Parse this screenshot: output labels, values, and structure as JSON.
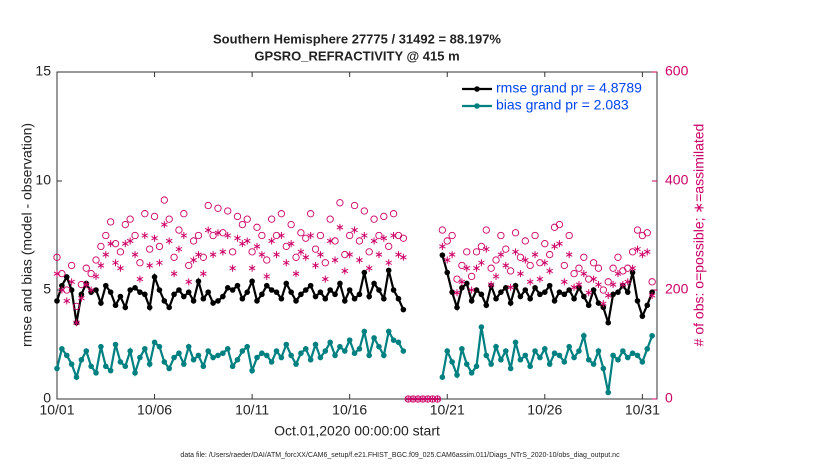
{
  "chart_data": {
    "type": "line",
    "title": "Southern Hemisphere 27775 / 31492 = 88.197%",
    "subtitle": "GPSRO_REFRACTIVITY @ 415 m",
    "ylabel": "rmse and bias (model - observation)",
    "y2label": "# of obs: o=possible; ∗=assimilated",
    "xlabel": "Oct.01,2020 00:00:00 start",
    "footnote": "data file: /Users/raeder/DAI/ATM_forcXX/CAM6_setup/f.e21.FHIST_BGC.f09_025.CAM6assim.011/Diags_NTrS_2020-10/obs_diag_output.nc",
    "xlim": [
      0,
      30.75
    ],
    "ylim": [
      0,
      15
    ],
    "y2lim": [
      0,
      600
    ],
    "xticks": [
      {
        "value": 0,
        "label": "10/01"
      },
      {
        "value": 5,
        "label": "10/06"
      },
      {
        "value": 10,
        "label": "10/11"
      },
      {
        "value": 15,
        "label": "10/16"
      },
      {
        "value": 20,
        "label": "10/21"
      },
      {
        "value": 25,
        "label": "10/26"
      },
      {
        "value": 30,
        "label": "10/31"
      }
    ],
    "yticks": [
      0,
      5,
      10,
      15
    ],
    "y2ticks": [
      0,
      200,
      400,
      600
    ],
    "legend": "upper-right",
    "legend_color": "#0044ee",
    "y2color": "#cc0066",
    "x": [
      0,
      0.25,
      0.5,
      0.75,
      1,
      1.25,
      1.5,
      1.75,
      2,
      2.25,
      2.5,
      2.75,
      3,
      3.25,
      3.5,
      3.75,
      4,
      4.25,
      4.5,
      4.75,
      5,
      5.25,
      5.5,
      5.75,
      6,
      6.25,
      6.5,
      6.75,
      7,
      7.25,
      7.5,
      7.75,
      8,
      8.25,
      8.5,
      8.75,
      9,
      9.25,
      9.5,
      9.75,
      10,
      10.25,
      10.5,
      10.75,
      11,
      11.25,
      11.5,
      11.75,
      12,
      12.25,
      12.5,
      12.75,
      13,
      13.25,
      13.5,
      13.75,
      14,
      14.25,
      14.5,
      14.75,
      15,
      15.25,
      15.5,
      15.75,
      16,
      16.25,
      16.5,
      16.75,
      17,
      17.25,
      17.5,
      17.75,
      18,
      18.25,
      18.5,
      18.75,
      19,
      19.25,
      19.5,
      19.75,
      20,
      20.25,
      20.5,
      20.75,
      21,
      21.25,
      21.5,
      21.75,
      22,
      22.25,
      22.5,
      22.75,
      23,
      23.25,
      23.5,
      23.75,
      24,
      24.25,
      24.5,
      24.75,
      25,
      25.25,
      25.5,
      25.75,
      26,
      26.25,
      26.5,
      26.75,
      27,
      27.25,
      27.5,
      27.75,
      28,
      28.25,
      28.5,
      28.75,
      29,
      29.25,
      29.5,
      29.75,
      30,
      30.25,
      30.5
    ],
    "series": [
      {
        "name": "rmse grand pr = 4.8789",
        "color": "#000000",
        "marker": "dot",
        "values": [
          4.5,
          5.2,
          5.6,
          5.0,
          3.5,
          4.8,
          5.3,
          4.9,
          5.0,
          4.4,
          5.2,
          4.9,
          4.3,
          4.7,
          4.2,
          5.0,
          5.1,
          4.9,
          4.8,
          4.2,
          5.6,
          5.0,
          4.5,
          4.2,
          4.8,
          5.0,
          4.7,
          4.9,
          4.5,
          5.4,
          4.6,
          4.9,
          4.4,
          4.5,
          4.7,
          5.1,
          5.0,
          5.2,
          4.6,
          4.9,
          5.4,
          4.5,
          4.8,
          5.2,
          5.0,
          4.9,
          4.6,
          5.3,
          4.9,
          4.5,
          4.8,
          5.0,
          5.2,
          4.7,
          4.9,
          4.6,
          5.0,
          4.8,
          5.3,
          4.5,
          5.0,
          4.6,
          4.8,
          5.8,
          4.7,
          5.3,
          5.0,
          4.6,
          5.9,
          5.0,
          4.6,
          4.1,
          null,
          null,
          null,
          null,
          null,
          null,
          null,
          6.6,
          5.8,
          4.9,
          4.2,
          5.1,
          5.3,
          4.5,
          5.0,
          4.8,
          4.3,
          5.2,
          4.6,
          4.9,
          5.1,
          4.4,
          5.2,
          4.7,
          5.0,
          4.6,
          5.1,
          4.8,
          4.9,
          5.2,
          4.5,
          4.9,
          4.8,
          5.0,
          4.6,
          5.1,
          4.7,
          4.3,
          5.0,
          4.4,
          4.2,
          3.5,
          4.8,
          4.9,
          5.2,
          4.9,
          5.8,
          4.5,
          3.8,
          4.3,
          4.9
        ]
      },
      {
        "name": "bias grand pr = 2.083",
        "color": "#008080",
        "marker": "dot",
        "values": [
          1.4,
          2.3,
          2.0,
          1.6,
          1.0,
          1.8,
          2.2,
          1.5,
          1.2,
          2.4,
          1.5,
          1.3,
          2.5,
          1.7,
          1.5,
          2.2,
          1.2,
          1.9,
          2.3,
          1.6,
          2.6,
          2.4,
          1.7,
          1.4,
          1.9,
          2.1,
          1.6,
          2.4,
          1.8,
          2.0,
          1.5,
          2.2,
          1.9,
          2.0,
          2.1,
          2.3,
          1.5,
          1.8,
          2.2,
          2.4,
          1.3,
          1.9,
          2.1,
          2.0,
          1.7,
          2.2,
          1.9,
          2.5,
          2.0,
          1.6,
          2.1,
          2.3,
          1.8,
          2.5,
          1.9,
          2.2,
          2.6,
          2.0,
          2.4,
          2.2,
          2.7,
          2.1,
          2.3,
          3.1,
          2.0,
          2.8,
          2.4,
          2.0,
          3.1,
          2.7,
          2.6,
          2.2,
          null,
          null,
          null,
          null,
          null,
          null,
          null,
          1.0,
          2.2,
          1.7,
          1.1,
          2.3,
          1.6,
          1.2,
          1.5,
          3.3,
          2.0,
          1.6,
          2.4,
          1.8,
          2.2,
          1.4,
          2.6,
          1.8,
          2.0,
          1.5,
          2.2,
          1.9,
          2.3,
          1.6,
          2.1,
          2.0,
          1.7,
          2.4,
          1.9,
          2.2,
          2.9,
          1.8,
          1.6,
          2.2,
          1.4,
          0.3,
          2.0,
          1.8,
          2.2,
          1.9,
          2.1,
          2.0,
          1.7,
          2.3,
          2.9
        ]
      },
      {
        "color": "#cc0066",
        "marker": "o",
        "axis": "y2",
        "values": [
          260,
          230,
          200,
          245,
          170,
          210,
          240,
          230,
          255,
          280,
          300,
          325,
          285,
          270,
          320,
          330,
          300,
          250,
          340,
          275,
          335,
          280,
          365,
          330,
          260,
          310,
          340,
          245,
          290,
          300,
          260,
          355,
          300,
          350,
          305,
          345,
          270,
          335,
          320,
          330,
          270,
          315,
          300,
          255,
          330,
          300,
          340,
          280,
          320,
          260,
          305,
          295,
          340,
          275,
          300,
          250,
          330,
          290,
          360,
          265,
          300,
          355,
          290,
          345,
          270,
          330,
          300,
          335,
          280,
          340,
          300,
          295,
          0,
          0,
          0,
          0,
          0,
          0,
          0,
          310,
          290,
          300,
          220,
          245,
          270,
          225,
          270,
          280,
          310,
          240,
          255,
          300,
          275,
          235,
          305,
          260,
          290,
          245,
          300,
          250,
          285,
          265,
          315,
          320,
          245,
          300,
          230,
          240,
          260,
          220,
          250,
          240,
          200,
          215,
          240,
          260,
          235,
          240,
          270,
          310,
          300,
          305,
          215
        ]
      },
      {
        "color": "#cc0066",
        "marker": "*",
        "axis": "y2",
        "values": [
          230,
          200,
          180,
          215,
          140,
          185,
          210,
          200,
          225,
          245,
          265,
          285,
          250,
          240,
          285,
          290,
          265,
          220,
          300,
          245,
          295,
          250,
          320,
          290,
          230,
          275,
          300,
          215,
          255,
          265,
          230,
          310,
          265,
          305,
          270,
          300,
          240,
          295,
          285,
          290,
          240,
          280,
          265,
          225,
          290,
          265,
          300,
          250,
          285,
          230,
          270,
          260,
          300,
          245,
          265,
          220,
          290,
          255,
          315,
          235,
          265,
          310,
          255,
          300,
          240,
          290,
          265,
          295,
          250,
          300,
          265,
          260,
          0,
          0,
          0,
          0,
          0,
          0,
          0,
          280,
          255,
          265,
          195,
          215,
          240,
          200,
          240,
          250,
          275,
          210,
          225,
          265,
          245,
          205,
          270,
          230,
          255,
          215,
          265,
          220,
          250,
          235,
          280,
          285,
          215,
          265,
          205,
          210,
          230,
          195,
          220,
          210,
          175,
          190,
          210,
          230,
          210,
          215,
          240,
          275,
          265,
          270,
          190
        ]
      }
    ]
  }
}
